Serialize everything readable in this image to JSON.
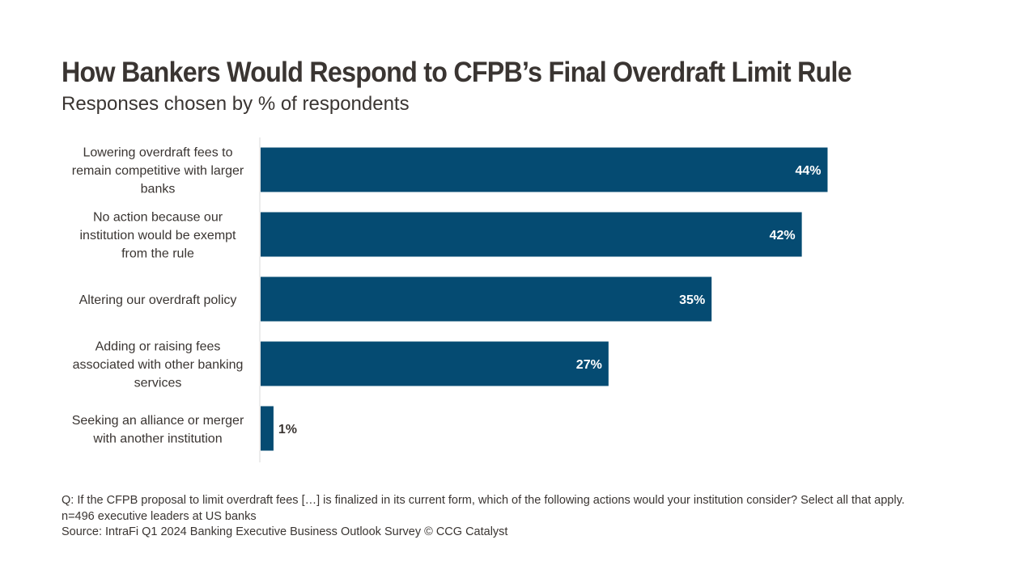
{
  "title": "How Bankers Would Respond to CFPB’s Final Overdraft Limit Rule",
  "subtitle": "Responses chosen by % of respondents",
  "chart_data": {
    "type": "bar",
    "orientation": "horizontal",
    "categories": [
      [
        "Lowering overdraft fees to",
        "remain competitive with larger",
        "banks"
      ],
      [
        "No action because our",
        "institution would be exempt",
        "from the rule"
      ],
      [
        "Altering our overdraft policy"
      ],
      [
        "Adding or raising fees",
        "associated with other banking",
        "services"
      ],
      [
        "Seeking an alliance or merger",
        "with another institution"
      ]
    ],
    "values": [
      44,
      42,
      35,
      27,
      1
    ],
    "value_labels": [
      "44%",
      "42%",
      "35%",
      "27%",
      "1%"
    ],
    "unit": "%",
    "xlim": [
      0,
      50
    ],
    "bar_color": "#054b72",
    "inside_label_color": "#ffffff",
    "outside_label_color": "#3a3532",
    "grid": false,
    "legend": "none"
  },
  "footnotes": {
    "question": "Q: If the CFPB proposal to limit overdraft fees […] is finalized in its current form, which of the following actions would your institution consider? Select all that apply.",
    "sample": "n=496 executive leaders at US banks",
    "source": "Source: IntraFi Q1 2024 Banking Executive Business Outlook Survey © CCG Catalyst"
  }
}
